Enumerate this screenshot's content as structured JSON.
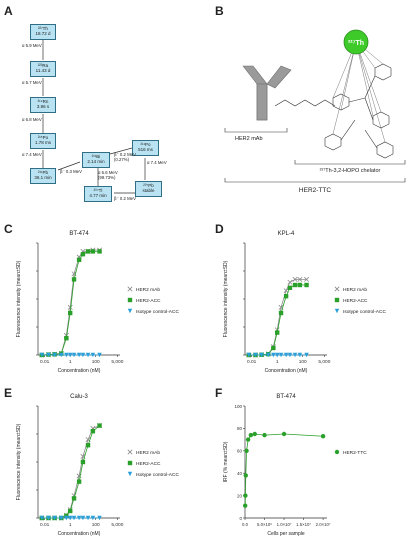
{
  "panels": {
    "a": "A",
    "b": "B",
    "c": "C",
    "d": "D",
    "e": "E",
    "f": "F"
  },
  "decay": {
    "nodes": [
      {
        "iso": "²²⁷Th",
        "t": "18.72 d"
      },
      {
        "iso": "²²³Ra",
        "t": "11.43 d"
      },
      {
        "iso": "²¹⁹Rn",
        "t": "3.96 s"
      },
      {
        "iso": "²¹⁵Po",
        "t": "1.78 ms"
      },
      {
        "iso": "²¹¹Pb",
        "t": "36.1 min"
      },
      {
        "iso": "²¹¹Bi",
        "t": "2.14 min"
      },
      {
        "iso": "²¹¹Po",
        "t": "516 ms"
      },
      {
        "iso": "²⁰⁷Tl",
        "t": "4.77 min"
      },
      {
        "iso": "²⁰⁷Pb",
        "t": "stable"
      }
    ],
    "labels": [
      "α 5.9 MeV",
      "α 5.7 MeV",
      "α 6.8 MeV",
      "α 7.4 MeV",
      "β⁻ 0.3 MeV",
      "β⁻ 0.2 MeV (0.27%)",
      "α 6.6 MeV (99.73%)",
      "α 7.4 MeV",
      "β⁻ 0.2 MeV"
    ]
  },
  "structure": {
    "th_label": "²²⁷Th",
    "mab_label": "HER2 mAb",
    "chelator_label": "²²⁷Th-3,2-HOPO chelator",
    "ttc_label": "HER2-TTC"
  },
  "chart_data": [
    {
      "type": "scatter",
      "title": "BT-474",
      "xlabel": "Concentration (nM)",
      "ylabel": "Fluorescence intensity (mean±SD)",
      "xscale": "log",
      "xlim": [
        0.003,
        8000
      ],
      "ylim": [
        0,
        4000
      ],
      "xticks": [
        "0.01",
        "1",
        "100",
        "5,000"
      ],
      "legend_position": "right",
      "series": [
        {
          "name": "HER2 mAb",
          "color": "#8a8a8a",
          "marker": "x",
          "x": [
            0.006,
            0.02,
            0.06,
            0.2,
            0.5,
            1,
            2,
            5,
            10,
            25,
            60,
            200
          ],
          "y": [
            0,
            20,
            30,
            60,
            700,
            1700,
            2900,
            3500,
            3700,
            3700,
            3750,
            3750
          ]
        },
        {
          "name": "HER2-ACC",
          "color": "#2aa02a",
          "marker": "square",
          "x": [
            0.006,
            0.02,
            0.06,
            0.2,
            0.5,
            1,
            2,
            5,
            10,
            25,
            60,
            200
          ],
          "y": [
            0,
            15,
            25,
            50,
            600,
            1500,
            2700,
            3400,
            3600,
            3700,
            3700,
            3700
          ]
        },
        {
          "name": "Isotype control-ACC",
          "color": "#2b9fd9",
          "marker": "triangle-down",
          "x": [
            0.006,
            0.02,
            0.06,
            0.2,
            0.5,
            1,
            2,
            5,
            10,
            25,
            60,
            200
          ],
          "y": [
            0,
            0,
            0,
            0,
            0,
            0,
            0,
            0,
            0,
            0,
            0,
            0
          ]
        }
      ]
    },
    {
      "type": "scatter",
      "title": "KPL-4",
      "xlabel": "Concentration (nM)",
      "ylabel": "Fluorescence intensity (mean±SD)",
      "xscale": "log",
      "xlim": [
        0.003,
        8000
      ],
      "ylim": [
        0,
        4000
      ],
      "xticks": [
        "0.01",
        "1",
        "100",
        "5,000"
      ],
      "legend_position": "right",
      "series": [
        {
          "name": "HER2 mAb",
          "color": "#8a8a8a",
          "marker": "x",
          "x": [
            0.006,
            0.02,
            0.06,
            0.2,
            0.5,
            1,
            2,
            5,
            10,
            25,
            60,
            200
          ],
          "y": [
            0,
            0,
            10,
            40,
            300,
            900,
            1700,
            2300,
            2600,
            2700,
            2700,
            2700
          ]
        },
        {
          "name": "HER2-ACC",
          "color": "#2aa02a",
          "marker": "square",
          "x": [
            0.006,
            0.02,
            0.06,
            0.2,
            0.5,
            1,
            2,
            5,
            10,
            25,
            60,
            200
          ],
          "y": [
            0,
            0,
            10,
            30,
            250,
            800,
            1500,
            2100,
            2400,
            2500,
            2500,
            2500
          ]
        },
        {
          "name": "Isotype control-ACC",
          "color": "#2b9fd9",
          "marker": "triangle-down",
          "x": [
            0.006,
            0.02,
            0.06,
            0.2,
            0.5,
            1,
            2,
            5,
            10,
            25,
            60,
            200
          ],
          "y": [
            0,
            0,
            0,
            0,
            0,
            0,
            0,
            0,
            0,
            0,
            0,
            0
          ]
        }
      ]
    },
    {
      "type": "scatter",
      "title": "Calu-3",
      "xlabel": "Concentration (nM)",
      "ylabel": "Fluorescence intensity (mean±SD)",
      "xscale": "log",
      "xlim": [
        0.003,
        8000
      ],
      "ylim": [
        0,
        4000
      ],
      "xticks": [
        "0.01",
        "1",
        "100",
        "5,000"
      ],
      "legend_position": "right",
      "series": [
        {
          "name": "HER2 mAb",
          "color": "#8a8a8a",
          "marker": "x",
          "x": [
            0.006,
            0.02,
            0.06,
            0.2,
            0.5,
            1,
            2,
            5,
            10,
            25,
            60,
            200
          ],
          "y": [
            0,
            0,
            0,
            0,
            100,
            300,
            800,
            1500,
            2200,
            2800,
            3200,
            3300
          ]
        },
        {
          "name": "HER2-ACC",
          "color": "#2aa02a",
          "marker": "square",
          "x": [
            0.006,
            0.02,
            0.06,
            0.2,
            0.5,
            1,
            2,
            5,
            10,
            25,
            60,
            200
          ],
          "y": [
            0,
            0,
            0,
            0,
            80,
            250,
            700,
            1300,
            2000,
            2600,
            3100,
            3300
          ]
        },
        {
          "name": "Isotype control-ACC",
          "color": "#2b9fd9",
          "marker": "triangle-down",
          "x": [
            0.006,
            0.02,
            0.06,
            0.2,
            0.5,
            1,
            2,
            5,
            10,
            25,
            60,
            200
          ],
          "y": [
            0,
            0,
            0,
            0,
            0,
            0,
            0,
            0,
            0,
            0,
            0,
            0
          ]
        }
      ]
    },
    {
      "type": "scatter",
      "title": "BT-474",
      "xlabel": "Cells per sample",
      "ylabel": "IRF (% mean±SD)",
      "xscale": "linear",
      "xlim": [
        0,
        21000000
      ],
      "ylim": [
        0,
        100
      ],
      "xticks": [
        "0.0",
        "5.0×10⁶",
        "1.0×10⁷",
        "1.5×10⁷",
        "2.0×10⁷"
      ],
      "yticks": [
        "0",
        "20",
        "40",
        "60",
        "80",
        "100"
      ],
      "legend_position": "right",
      "series": [
        {
          "name": "HER2-TTC",
          "color": "#2aa02a",
          "marker": "circle",
          "x": [
            50000,
            100000,
            200000,
            400000,
            800000,
            1500000,
            2500000,
            5000000,
            10000000,
            20000000
          ],
          "y": [
            11,
            20,
            38,
            60,
            70,
            74,
            75,
            74,
            75,
            73
          ]
        }
      ]
    }
  ]
}
